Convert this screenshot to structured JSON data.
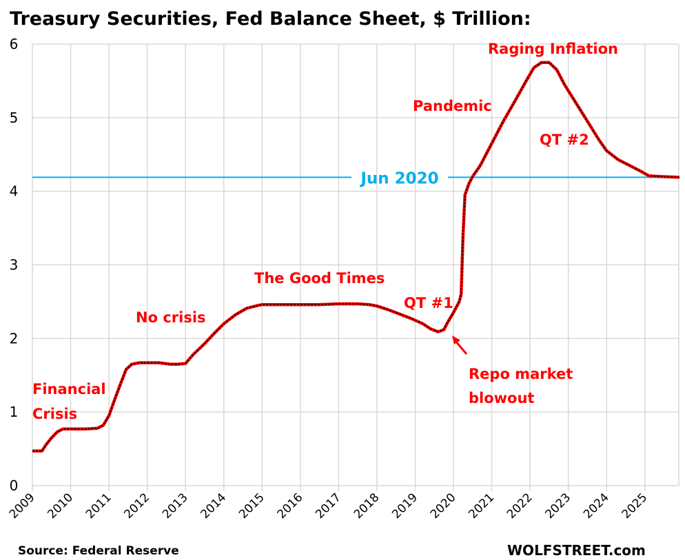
{
  "chart_data": {
    "type": "line",
    "title": "Treasury Securities, Fed Balance Sheet, $ Trillion:",
    "xlabel": "",
    "ylabel": "",
    "xlim": [
      2009,
      2025.9
    ],
    "ylim": [
      0,
      6
    ],
    "grid": true,
    "y_ticks": [
      "0",
      "1",
      "2",
      "3",
      "4",
      "5",
      "6"
    ],
    "x_ticks": [
      "2009",
      "2010",
      "2011",
      "2012",
      "2013",
      "2014",
      "2015",
      "2016",
      "2017",
      "2018",
      "2019",
      "2020",
      "2021",
      "2022",
      "2023",
      "2024",
      "2025"
    ],
    "series": [
      {
        "name": "Treasury Securities",
        "color": "#c00000",
        "points": [
          [
            2009.0,
            0.47
          ],
          [
            2009.25,
            0.47
          ],
          [
            2009.35,
            0.55
          ],
          [
            2009.5,
            0.65
          ],
          [
            2009.65,
            0.73
          ],
          [
            2009.8,
            0.77
          ],
          [
            2010.0,
            0.77
          ],
          [
            2010.4,
            0.77
          ],
          [
            2010.7,
            0.78
          ],
          [
            2010.85,
            0.82
          ],
          [
            2011.0,
            0.95
          ],
          [
            2011.15,
            1.17
          ],
          [
            2011.3,
            1.38
          ],
          [
            2011.45,
            1.58
          ],
          [
            2011.6,
            1.65
          ],
          [
            2011.8,
            1.67
          ],
          [
            2012.0,
            1.67
          ],
          [
            2012.3,
            1.67
          ],
          [
            2012.6,
            1.65
          ],
          [
            2012.8,
            1.65
          ],
          [
            2013.0,
            1.66
          ],
          [
            2013.2,
            1.78
          ],
          [
            2013.5,
            1.93
          ],
          [
            2013.75,
            2.07
          ],
          [
            2014.0,
            2.2
          ],
          [
            2014.3,
            2.32
          ],
          [
            2014.6,
            2.41
          ],
          [
            2014.9,
            2.45
          ],
          [
            2015.0,
            2.46
          ],
          [
            2016.0,
            2.46
          ],
          [
            2016.5,
            2.46
          ],
          [
            2017.0,
            2.47
          ],
          [
            2017.5,
            2.47
          ],
          [
            2017.8,
            2.46
          ],
          [
            2018.0,
            2.44
          ],
          [
            2018.3,
            2.39
          ],
          [
            2018.6,
            2.33
          ],
          [
            2018.9,
            2.27
          ],
          [
            2019.2,
            2.2
          ],
          [
            2019.4,
            2.13
          ],
          [
            2019.6,
            2.09
          ],
          [
            2019.75,
            2.12
          ],
          [
            2019.85,
            2.22
          ],
          [
            2020.0,
            2.35
          ],
          [
            2020.15,
            2.5
          ],
          [
            2020.2,
            2.6
          ],
          [
            2020.25,
            3.4
          ],
          [
            2020.3,
            3.95
          ],
          [
            2020.4,
            4.1
          ],
          [
            2020.5,
            4.2
          ],
          [
            2020.7,
            4.35
          ],
          [
            2021.0,
            4.65
          ],
          [
            2021.3,
            4.95
          ],
          [
            2021.6,
            5.22
          ],
          [
            2021.9,
            5.5
          ],
          [
            2022.1,
            5.68
          ],
          [
            2022.3,
            5.75
          ],
          [
            2022.5,
            5.75
          ],
          [
            2022.7,
            5.65
          ],
          [
            2022.9,
            5.45
          ],
          [
            2023.2,
            5.2
          ],
          [
            2023.5,
            4.95
          ],
          [
            2023.8,
            4.7
          ],
          [
            2024.0,
            4.55
          ],
          [
            2024.3,
            4.43
          ],
          [
            2024.6,
            4.35
          ],
          [
            2024.9,
            4.27
          ],
          [
            2025.1,
            4.21
          ],
          [
            2025.4,
            4.2
          ],
          [
            2025.9,
            4.19
          ]
        ]
      }
    ],
    "reference_line": {
      "label": "Jun 2020",
      "value": 4.19,
      "color": "#00b0f0"
    },
    "annotations": [
      {
        "text": "Financial",
        "color": "#ff0000"
      },
      {
        "text": "Crisis",
        "color": "#ff0000"
      },
      {
        "text": "No crisis",
        "color": "#ff0000"
      },
      {
        "text": "The Good Times",
        "color": "#ff0000"
      },
      {
        "text": "QT #1",
        "color": "#ff0000"
      },
      {
        "text": "Repo market",
        "color": "#ff0000"
      },
      {
        "text": "blowout",
        "color": "#ff0000"
      },
      {
        "text": "Pandemic",
        "color": "#ff0000"
      },
      {
        "text": "Raging  Inflation",
        "color": "#ff0000"
      },
      {
        "text": "QT #2",
        "color": "#ff0000"
      }
    ],
    "source": "Source: Federal Reserve",
    "credit": "WOLFSTREET.com"
  }
}
